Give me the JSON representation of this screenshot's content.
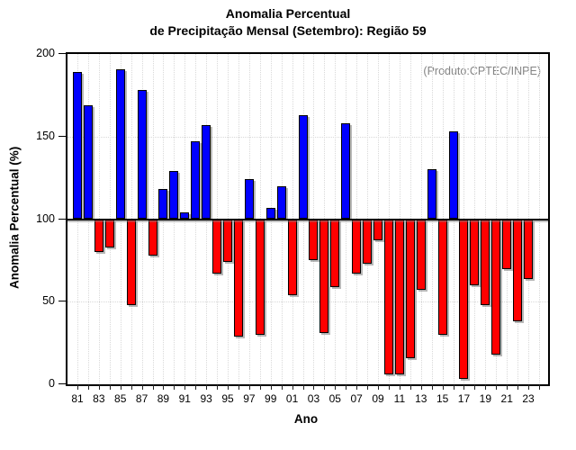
{
  "title": {
    "line1": "Anomalia Percentual",
    "line2": "de Precipitação Mensal (Setembro): Região 59"
  },
  "annotation": "(Produto:CPTEC/INPE)",
  "axes": {
    "y_label": "Anomalia Percentual (%)",
    "x_label": "Ano"
  },
  "chart_data": {
    "type": "bar",
    "title": "Anomalia Percentual de Precipitação Mensal (Setembro): Região 59",
    "xlabel": "Ano",
    "ylabel": "Anomalia Percentual (%)",
    "ylim": [
      0,
      200
    ],
    "yticks": [
      0,
      50,
      100,
      150,
      200
    ],
    "baseline": 100,
    "grid_y_values": [
      50,
      150
    ],
    "grid": "dotted",
    "legend_position": "none",
    "x_tick_label_every": 2,
    "extra_unlabeled_tick": "24",
    "categories": [
      "81",
      "82",
      "83",
      "84",
      "85",
      "86",
      "87",
      "88",
      "89",
      "90",
      "91",
      "92",
      "93",
      "94",
      "95",
      "96",
      "97",
      "98",
      "99",
      "00",
      "01",
      "02",
      "03",
      "04",
      "05",
      "06",
      "07",
      "08",
      "09",
      "10",
      "11",
      "12",
      "13",
      "14",
      "15",
      "16",
      "17",
      "18",
      "19",
      "20",
      "21",
      "22",
      "23"
    ],
    "values": [
      189,
      169,
      80,
      83,
      191,
      48,
      178,
      78,
      118,
      129,
      104,
      147,
      157,
      67,
      74,
      29,
      124,
      30,
      107,
      120,
      54,
      163,
      75,
      31,
      59,
      158,
      67,
      73,
      87,
      6,
      6,
      16,
      57,
      130,
      30,
      153,
      3,
      60,
      48,
      18,
      70,
      38,
      64
    ],
    "colors": {
      "above_baseline": "#0000ff",
      "below_baseline": "#ff0000",
      "annotation_text": "#848484",
      "grid": "#d9d9d9"
    }
  }
}
